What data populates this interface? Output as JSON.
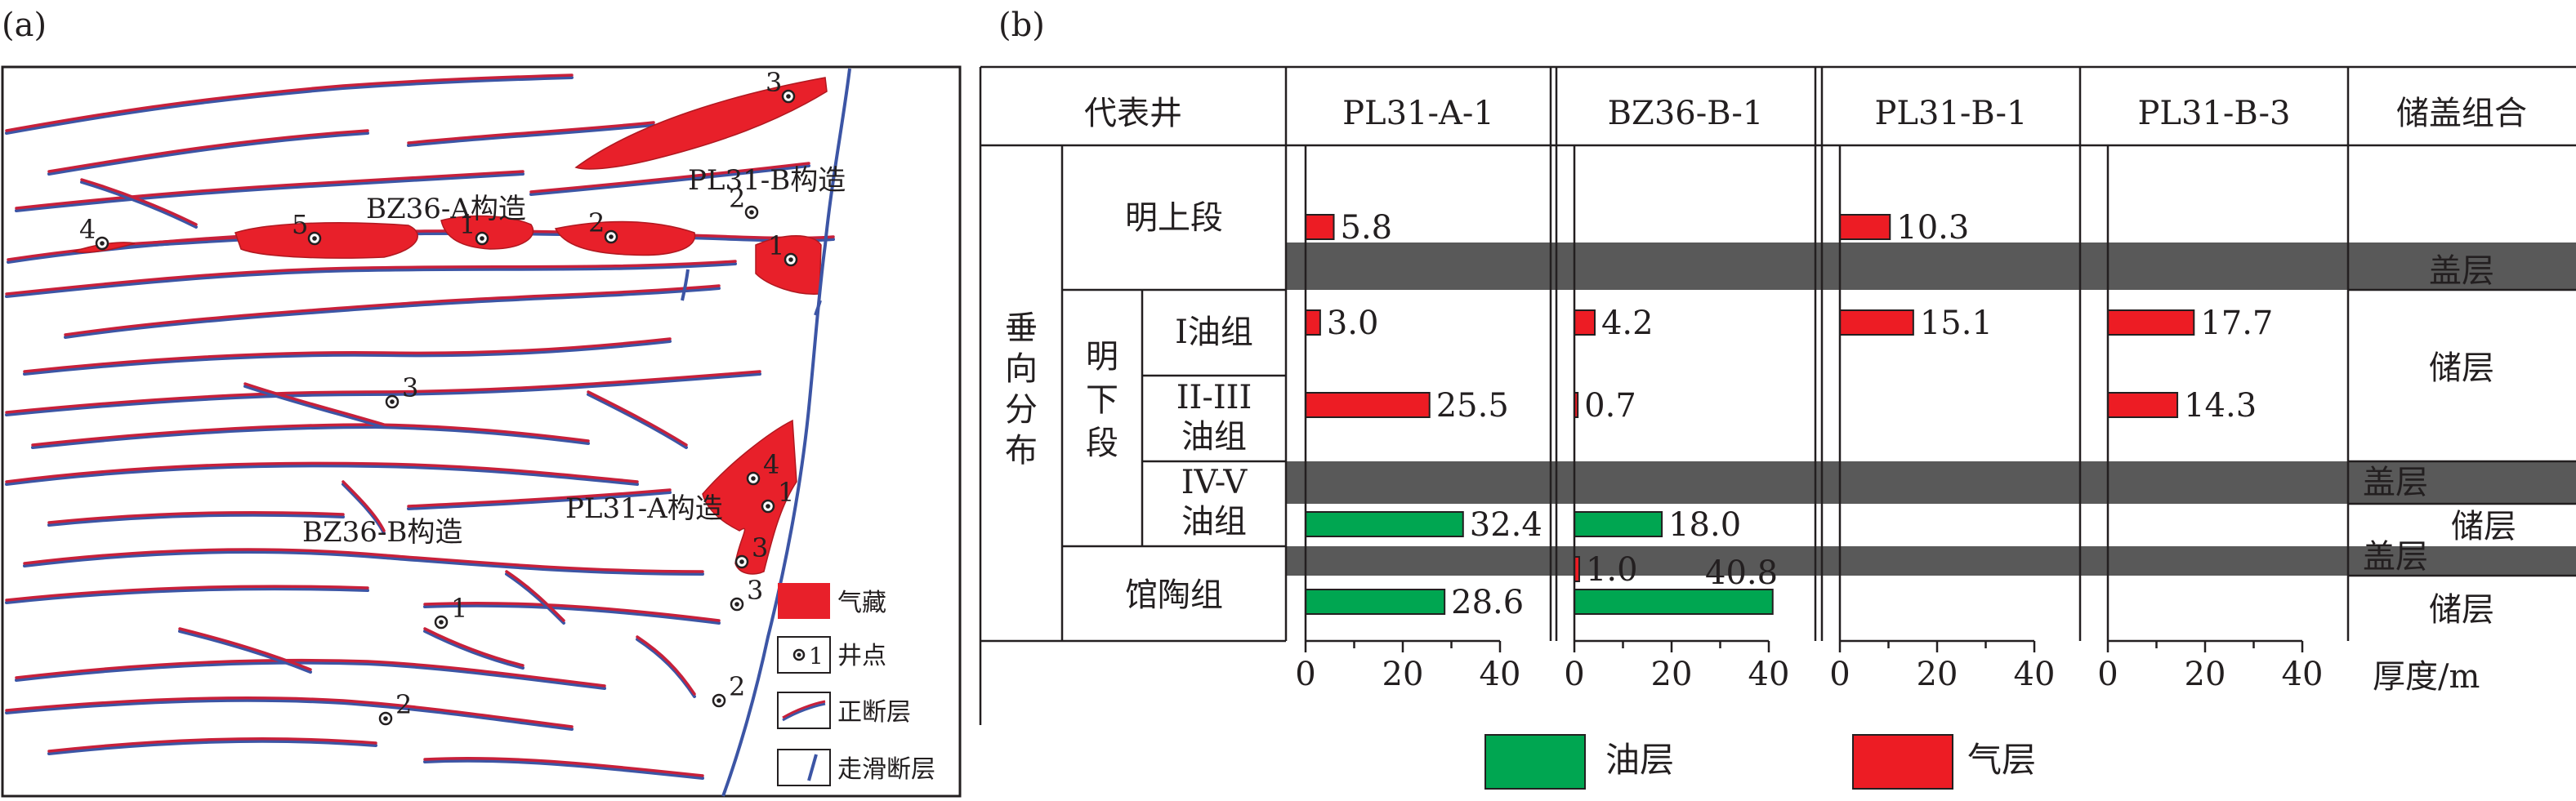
{
  "panel_a": {
    "label": "(a)",
    "structures": [
      "BZ36-A构造",
      "PL31-B构造",
      "BZ36-B构造",
      "PL31-A构造"
    ],
    "wells": [
      "3",
      "2",
      "1",
      "4",
      "5",
      "1",
      "2",
      "3",
      "4",
      "1",
      "3",
      "3",
      "1",
      "2",
      "2"
    ],
    "legend": [
      {
        "key": "gas",
        "label": "气藏",
        "color": "#e8202a"
      },
      {
        "key": "well",
        "label": "井点",
        "sample": "1"
      },
      {
        "key": "normal",
        "label": "正断层",
        "color": "#c8203a"
      },
      {
        "key": "strike",
        "label": "走滑断层",
        "color": "#3c55a5"
      }
    ]
  },
  "panel_b": {
    "label": "(b)",
    "header": {
      "col0": "代表井",
      "wells": [
        "PL31-A-1",
        "BZ36-B-1",
        "PL31-B-1",
        "PL31-B-3"
      ],
      "last": "储盖组合"
    },
    "vertical_label": [
      "垂",
      "向",
      "分",
      "布"
    ],
    "members": {
      "upper": "明上段",
      "lower_chars": [
        "明",
        "下",
        "段"
      ],
      "guantao": "馆陶组"
    },
    "groups": {
      "g1": "I油组",
      "g2": [
        "II-III",
        "油组"
      ],
      "g3": [
        "IV-V",
        "油组"
      ]
    },
    "combo": {
      "cap1": "盖层",
      "res1": "储层",
      "cap2": "盖层",
      "res2": "储层",
      "cap3": "盖层",
      "res3": "储层"
    },
    "axis_ticks": [
      "0",
      "20",
      "40"
    ],
    "axis_label": "厚度/m",
    "legend": [
      {
        "key": "oil",
        "label": "油层",
        "color": "#00a651"
      },
      {
        "key": "gas",
        "label": "气层",
        "color": "#ed1c24"
      }
    ],
    "colors": {
      "gas": "#ed1c24",
      "oil": "#00a651",
      "cap": "#595959"
    }
  },
  "chart_data": {
    "type": "bar",
    "orientation": "horizontal",
    "xlabel": "厚度/m",
    "xlim": [
      0,
      40
    ],
    "categories": [
      "明上段",
      "I油组",
      "II-III油组",
      "IV-V油组",
      "馆陶组"
    ],
    "bars": [
      {
        "well": "PL31-A-1",
        "row": "明上段",
        "type": "气层",
        "value": 5.8,
        "label": "5.8"
      },
      {
        "well": "PL31-A-1",
        "row": "I油组",
        "type": "气层",
        "value": 3.0,
        "label": "3.0"
      },
      {
        "well": "PL31-A-1",
        "row": "II-III油组",
        "type": "气层",
        "value": 25.5,
        "label": "25.5"
      },
      {
        "well": "PL31-A-1",
        "row": "IV-V油组",
        "type": "油层",
        "value": 32.4,
        "label": "32.4"
      },
      {
        "well": "PL31-A-1",
        "row": "馆陶组",
        "type": "油层",
        "value": 28.6,
        "label": "28.6"
      },
      {
        "well": "BZ36-B-1",
        "row": "I油组",
        "type": "气层",
        "value": 4.2,
        "label": "4.2"
      },
      {
        "well": "BZ36-B-1",
        "row": "II-III油组",
        "type": "气层",
        "value": 0.7,
        "label": "0.7"
      },
      {
        "well": "BZ36-B-1",
        "row": "IV-V油组",
        "type": "油层",
        "value": 18.0,
        "label": "18.0"
      },
      {
        "well": "BZ36-B-1",
        "row": "馆陶组",
        "type": "气层",
        "value": 1.0,
        "label": "1.0"
      },
      {
        "well": "BZ36-B-1",
        "row": "馆陶组",
        "type": "油层",
        "value": 40.8,
        "label": "40.8"
      },
      {
        "well": "PL31-B-1",
        "row": "明上段",
        "type": "气层",
        "value": 10.3,
        "label": "10.3"
      },
      {
        "well": "PL31-B-1",
        "row": "I油组",
        "type": "气层",
        "value": 15.1,
        "label": "15.1"
      },
      {
        "well": "PL31-B-3",
        "row": "I油组",
        "type": "气层",
        "value": 17.7,
        "label": "17.7"
      },
      {
        "well": "PL31-B-3",
        "row": "II-III油组",
        "type": "气层",
        "value": 14.3,
        "label": "14.3"
      }
    ]
  }
}
